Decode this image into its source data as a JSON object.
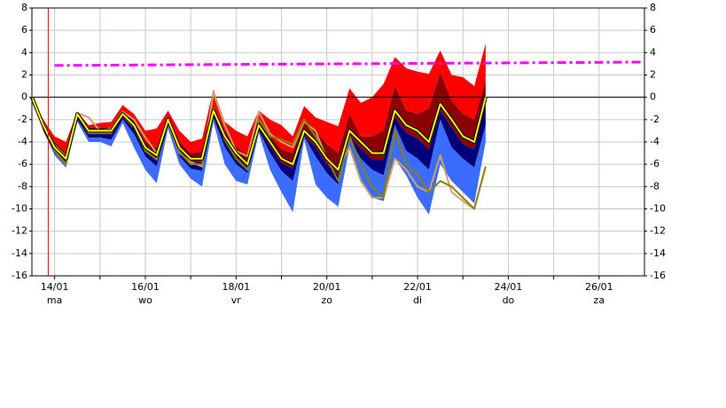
{
  "chart_data": {
    "type": "plume",
    "x": [
      13.5,
      13.75,
      14,
      14.25,
      14.5,
      14.75,
      15,
      15.25,
      15.5,
      15.75,
      16,
      16.25,
      16.5,
      16.75,
      17,
      17.25,
      17.5,
      17.75,
      18,
      18.25,
      18.5,
      18.75,
      19,
      19.25,
      19.5,
      19.75,
      20,
      20.25,
      20.5,
      20.75,
      21,
      21.25,
      21.5,
      21.75,
      22,
      22.25,
      22.5,
      22.75,
      23,
      23.25,
      23.5
    ],
    "series": [
      {
        "kind": "band",
        "color": "#ff0000",
        "values": [
          0,
          -2,
          -3.5,
          -4,
          -1.3,
          -2.5,
          -2.3,
          -2.2,
          -0.7,
          -1.5,
          -3,
          -2.8,
          -1.2,
          -3,
          -4,
          -3.7,
          0.7,
          -2.2,
          -3,
          -3.5,
          -1.2,
          -2,
          -2.5,
          -3.5,
          -0.8,
          -1.8,
          -2.2,
          -2.6,
          0.8,
          -0.5,
          0,
          1.2,
          3.6,
          2.6,
          2.3,
          2.1,
          4.2,
          2,
          1.8,
          1,
          4.8
        ]
      },
      {
        "kind": "band",
        "color": "#8b0000",
        "values": [
          0,
          -2.2,
          -4,
          -5,
          -1.3,
          -2.7,
          -2.7,
          -2.7,
          -1.2,
          -2.1,
          -4,
          -4.6,
          -1.7,
          -4,
          -5,
          -4.9,
          -0.8,
          -3,
          -4.4,
          -5.3,
          -2,
          -3.4,
          -4.7,
          -5,
          -2.2,
          -3,
          -4.2,
          -5,
          -1.5,
          -3.5,
          -3.5,
          -3,
          1,
          -1.2,
          -1.5,
          -1,
          2.2,
          -0.3,
          -1.5,
          -2,
          1.5
        ]
      },
      {
        "kind": "band",
        "color": "#00007a",
        "values": [
          0,
          -2.8,
          -4.8,
          -5.8,
          -1.8,
          -3.3,
          -3.3,
          -3.3,
          -1.8,
          -2.8,
          -4.8,
          -5.5,
          -2.3,
          -4.8,
          -5.8,
          -5.8,
          -1.5,
          -3.8,
          -5.3,
          -6.3,
          -2.8,
          -4.4,
          -5.9,
          -6.4,
          -3.4,
          -4.5,
          -6,
          -7,
          -3.5,
          -4.6,
          -5.6,
          -5.6,
          -1.8,
          -3.2,
          -3.7,
          -4.7,
          -1.2,
          -2.7,
          -4.2,
          -4.7,
          -0.6
        ]
      },
      {
        "kind": "band",
        "color": "#3a6cff",
        "values": [
          0,
          -3,
          -5,
          -6,
          -2,
          -3.6,
          -3.6,
          -3.8,
          -2,
          -3.3,
          -5.3,
          -6.2,
          -2.6,
          -5.3,
          -6.4,
          -6.6,
          -1.8,
          -4.5,
          -6,
          -6.8,
          -3,
          -5,
          -6.6,
          -7.5,
          -3.5,
          -5.3,
          -6.8,
          -7.8,
          -3.8,
          -5.5,
          -6.5,
          -7,
          -2.5,
          -4.8,
          -5.5,
          -6.5,
          -2,
          -4.5,
          -5.5,
          -6.3,
          -2.5
        ]
      },
      {
        "kind": "edge",
        "color": "#3a6cff",
        "values": [
          0,
          -3,
          -5.2,
          -6.3,
          -2.2,
          -4,
          -4,
          -4.4,
          -2.3,
          -4.5,
          -6.5,
          -7.7,
          -2.8,
          -6,
          -7.3,
          -8,
          -2.2,
          -6,
          -7.5,
          -7.8,
          -3.2,
          -6.5,
          -8.5,
          -10.3,
          -3.8,
          -7.8,
          -9,
          -9.8,
          -4.5,
          -7.5,
          -9,
          -9.3,
          -5.5,
          -7,
          -9,
          -10.5,
          -6,
          -7.5,
          -8.5,
          -9.5,
          -4
        ]
      },
      {
        "kind": "line",
        "color": "#d2a060",
        "values": [
          0,
          -2.3,
          -4.3,
          -5.3,
          -1.4,
          -1.8,
          -3,
          -2.8,
          -1.3,
          -2,
          -3.6,
          -5,
          -2.3,
          -5,
          -5.8,
          -6.2,
          0.4,
          -2.5,
          -4.8,
          -5.3,
          -1.3,
          -3.3,
          -4,
          -4.5,
          -2.2,
          -3,
          -5.5,
          -6.5,
          -4.5,
          -7.5,
          -9,
          -9,
          -5.5,
          -6.5,
          -8,
          -8.5,
          -5.2,
          -8.5,
          -9.3,
          -10,
          null
        ]
      },
      {
        "kind": "line",
        "color": "#8b8000",
        "values": [
          0,
          -2.6,
          -4.8,
          -6,
          -1.6,
          -3.2,
          -3.2,
          -3.2,
          -1.6,
          -2.7,
          -4.8,
          -5.6,
          -2.2,
          -4.9,
          -6,
          -6,
          -1,
          -3.8,
          -5.5,
          -6.5,
          -2,
          -3.5,
          -3.8,
          -4.2,
          -2,
          -3.5,
          -5.5,
          -7.5,
          -3.5,
          -6,
          -8,
          -9,
          -3,
          -6,
          -7,
          -8.5,
          -7.5,
          -8,
          -9,
          -10,
          -6.2
        ]
      },
      {
        "kind": "mean",
        "color": "#ffff00",
        "values": [
          0,
          -2.5,
          -4.5,
          -5.5,
          -1.5,
          -3,
          -3,
          -3,
          -1.5,
          -2.5,
          -4.5,
          -5.2,
          -2,
          -4.5,
          -5.5,
          -5.5,
          -1.2,
          -3.5,
          -5,
          -6,
          -2.5,
          -4,
          -5.5,
          -6,
          -3,
          -4,
          -5.5,
          -6.5,
          -3,
          -4,
          -5,
          -5,
          -1.2,
          -2.5,
          -3,
          -4,
          -0.6,
          -2,
          -3.5,
          -4,
          0
        ]
      }
    ],
    "reference": {
      "color": "#ff00ff",
      "x": [
        14,
        27
      ],
      "values": [
        2.85,
        3.15
      ]
    },
    "now_line": {
      "color": "#ff0000",
      "x": 13.86
    },
    "xlim": [
      13.5,
      27
    ],
    "xticks": [
      {
        "value": 14,
        "label": "14/01",
        "day": "ma"
      },
      {
        "value": 16,
        "label": "16/01",
        "day": "wo"
      },
      {
        "value": 18,
        "label": "18/01",
        "day": "vr"
      },
      {
        "value": 20,
        "label": "20/01",
        "day": "zo"
      },
      {
        "value": 22,
        "label": "22/01",
        "day": "di"
      },
      {
        "value": 24,
        "label": "24/01",
        "day": "do"
      },
      {
        "value": 26,
        "label": "26/01",
        "day": "za"
      }
    ],
    "xminor": [
      15,
      17,
      19,
      21,
      23,
      25
    ],
    "ylim": [
      -16,
      8
    ],
    "yticks": [
      -16,
      -14,
      -12,
      -10,
      -8,
      -6,
      -4,
      -2,
      0,
      2,
      4,
      6,
      8
    ],
    "grid": true
  }
}
